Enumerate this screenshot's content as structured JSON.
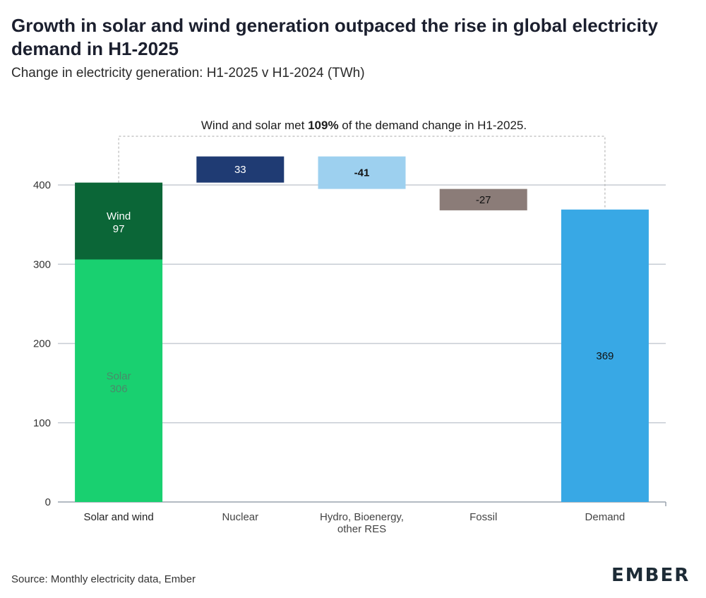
{
  "title": "Growth in solar and wind generation outpaced the rise in global electricity demand in H1-2025",
  "subtitle": "Change in electricity generation: H1-2025 v H1-2024 (TWh)",
  "source": "Source: Monthly electricity data, Ember",
  "logo": "EMBER",
  "chart_data": {
    "type": "waterfall",
    "ylim": [
      0,
      400
    ],
    "yticks": [
      0,
      100,
      200,
      300,
      400
    ],
    "grid": true,
    "categories": [
      "Solar and wind",
      "Nuclear",
      "Hydro, Bioenergy, other RES",
      "Fossil",
      "Demand"
    ],
    "category_label_lines": [
      [
        "Solar and wind"
      ],
      [
        "Nuclear"
      ],
      [
        "Hydro, Bioenergy,",
        "other RES"
      ],
      [
        "Fossil"
      ],
      [
        "Demand"
      ]
    ],
    "bars": [
      {
        "category": "Solar and wind",
        "stack": [
          {
            "name": "Solar",
            "value": 306,
            "color": "#19d070",
            "label_color": "#4a8a6a"
          },
          {
            "name": "Wind",
            "value": 97,
            "color": "#0b6637",
            "label_color": "#ffffff"
          }
        ]
      },
      {
        "category": "Nuclear",
        "value": 33,
        "base": 403,
        "color": "#1f3b73",
        "label_color": "#ffffff",
        "label_bold": false
      },
      {
        "category": "Hydro, Bioenergy, other RES",
        "value": -41,
        "base": 436,
        "color": "#9dd0ef",
        "label_color": "#111111",
        "label_bold": true
      },
      {
        "category": "Fossil",
        "value": -27,
        "base": 395,
        "color": "#8b7c78",
        "label_color": "#111111",
        "label_bold": false
      },
      {
        "category": "Demand",
        "value": 369,
        "base": 0,
        "color": "#38a8e5",
        "label_color": "#111111",
        "label_bold": false
      }
    ],
    "annotation": {
      "text_before": "Wind and solar met ",
      "text_bold": "109%",
      "text_after": " of the demand change in H1-2025."
    }
  }
}
